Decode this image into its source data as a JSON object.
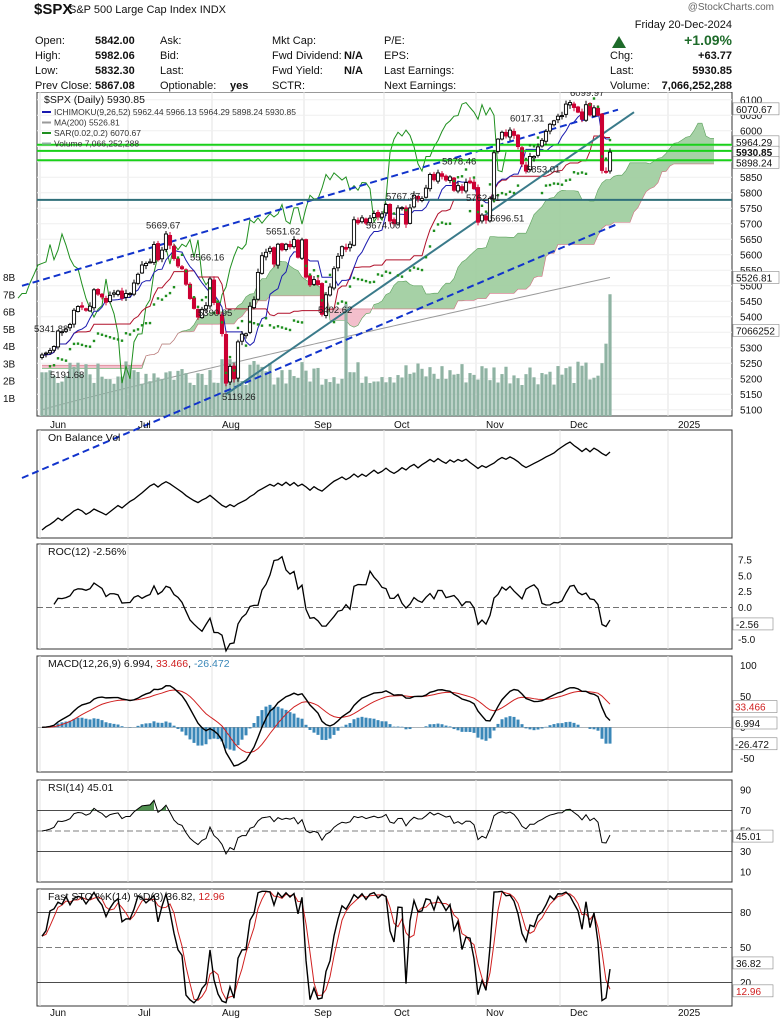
{
  "header": {
    "symbol": "$SPX",
    "name": "S&P 500 Large Cap Index",
    "exchange": "INDX",
    "watermark": "@StockCharts.com",
    "date_line": "Friday  20-Dec-2024",
    "change_pct": "+1.09%",
    "col1": [
      {
        "label": "Open:",
        "value": "5842.00"
      },
      {
        "label": "High:",
        "value": "5982.06"
      },
      {
        "label": "Low:",
        "value": "5832.30"
      },
      {
        "label": "Prev Close:",
        "value": "5867.08"
      }
    ],
    "col2": [
      {
        "label": "Ask:",
        "value": ""
      },
      {
        "label": "Bid:",
        "value": ""
      },
      {
        "label": "Last:",
        "value": ""
      },
      {
        "label": "Optionable:",
        "value": "yes"
      }
    ],
    "col3": [
      {
        "label": "Mkt Cap:",
        "value": ""
      },
      {
        "label": "Fwd Dividend:",
        "value": "N/A"
      },
      {
        "label": "Fwd Yield:",
        "value": "N/A"
      },
      {
        "label": "SCTR:",
        "value": ""
      }
    ],
    "col4": [
      {
        "label": "P/E:",
        "value": ""
      },
      {
        "label": "EPS:",
        "value": ""
      },
      {
        "label": "Last Earnings:",
        "value": ""
      },
      {
        "label": "Next Earnings:",
        "value": ""
      }
    ],
    "col5": [
      {
        "label": "Chg:",
        "value": "+63.77"
      },
      {
        "label": "Last:",
        "value": "5930.85"
      },
      {
        "label": "Volume:",
        "value": "7,066,252,288"
      }
    ]
  },
  "colors": {
    "up": "#000000",
    "down": "#cc0033",
    "tenkan": "#1a1ab0",
    "kijun": "#b0102a",
    "chikou": "#1f8f1f",
    "cloud_bull": "#9ccc9c",
    "cloud_bear": "#f2b8c6",
    "ma200": "#9a9a9a",
    "volume": "#8fb3a3",
    "trend_blue": "#1133cc",
    "trend_teal": "#3a7a8a",
    "hline_green": "#1ad11a",
    "hline_teal": "#2f6f7a",
    "macd_hist": "#3a87b8",
    "rsi_green": "#4f8f4f"
  },
  "chart_data": [
    {
      "type": "candlestick",
      "panel": "price",
      "title": "$SPX (Daily) 5930.85",
      "legend": [
        {
          "text": "ICHIMOKU(9,26,52) 5962.44 5966.13 5964.29 5898.24 5930.85",
          "color": "#1a1ab0"
        },
        {
          "text": "MA(200) 5526.81",
          "color": "#9a9a9a"
        },
        {
          "text": "SAR(0.02,0.2) 6070.67",
          "color": "#1f8f1f"
        },
        {
          "text": "Volume 7,066,252,288",
          "color": "#8fb3a3"
        }
      ],
      "y_ticks": [
        "6100",
        "6050",
        "6000",
        "5950",
        "5900",
        "5850",
        "5800",
        "5750",
        "5700",
        "5650",
        "5600",
        "5550",
        "5500",
        "5450",
        "5400",
        "5350",
        "5300",
        "5250",
        "5200",
        "5150",
        "5100"
      ],
      "y_tick_values": [
        6100,
        6050,
        6000,
        5950,
        5900,
        5850,
        5800,
        5750,
        5700,
        5650,
        5600,
        5550,
        5500,
        5450,
        5400,
        5350,
        5300,
        5250,
        5200,
        5150,
        5100
      ],
      "ylim": [
        5080,
        6125
      ],
      "volume_ticks": [
        "8B",
        "7B",
        "6B",
        "5B",
        "4B",
        "3B",
        "2B",
        "1B"
      ],
      "volume_tick_values": [
        8,
        7,
        6,
        5,
        4,
        3,
        2,
        1
      ],
      "x_month_labels": [
        "Jun",
        "Jul",
        "Aug",
        "Sep",
        "Oct",
        "Nov",
        "Dec",
        "2025"
      ],
      "x_month_index": [
        0,
        22,
        43,
        66,
        86,
        109,
        130,
        157
      ],
      "annotations": [
        {
          "text": "5341.88",
          "i": 2,
          "y": 5338
        },
        {
          "text": "5191.68",
          "i": 6,
          "y": 5190
        },
        {
          "text": "5669.67",
          "i": 30,
          "y": 5672
        },
        {
          "text": "5566.16",
          "i": 41,
          "y": 5568
        },
        {
          "text": "5390.95",
          "i": 43,
          "y": 5390
        },
        {
          "text": "5119.26",
          "i": 49,
          "y": 5118
        },
        {
          "text": "5651.62",
          "i": 60,
          "y": 5652
        },
        {
          "text": "5402.62",
          "i": 73,
          "y": 5400
        },
        {
          "text": "5674.00",
          "i": 85,
          "y": 5672
        },
        {
          "text": "5767.37",
          "i": 90,
          "y": 5765
        },
        {
          "text": "5878.46",
          "i": 104,
          "y": 5878
        },
        {
          "text": "5762.41",
          "i": 110,
          "y": 5760
        },
        {
          "text": "5696.51",
          "i": 116,
          "y": 5695
        },
        {
          "text": "6017.31",
          "i": 121,
          "y": 6017
        },
        {
          "text": "5853.01",
          "i": 125,
          "y": 5853
        },
        {
          "text": "6099.97",
          "i": 136,
          "y": 6100
        }
      ],
      "right_labels": [
        {
          "text": "6070.67",
          "y": 6070.67,
          "bg": "#ffffff"
        },
        {
          "text": "5964.29",
          "y": 5964.29,
          "bg": "#ffffff"
        },
        {
          "text": "5930.85",
          "y": 5930.85,
          "bg": "#ffffff"
        },
        {
          "text": "5898.24",
          "y": 5898.24,
          "bg": "#ffffff"
        },
        {
          "text": "5526.81",
          "y": 5526.81,
          "bg": "#ffffff"
        },
        {
          "text": "7066252",
          "y": 5356,
          "bg": "#ffffff"
        }
      ],
      "close": [
        5277,
        5283,
        5291,
        5304,
        5354,
        5352,
        5360,
        5375,
        5421,
        5433,
        5431,
        5421,
        5434,
        5487,
        5473,
        5464,
        5447,
        5469,
        5477,
        5483,
        5460,
        5475,
        5475,
        5509,
        5537,
        5567,
        5572,
        5577,
        5633,
        5584,
        5615,
        5667,
        5631,
        5588,
        5564,
        5555,
        5505,
        5459,
        5427,
        5399,
        5424,
        5436,
        5522,
        5446,
        5410,
        5346,
        5186,
        5240,
        5200,
        5319,
        5344,
        5345,
        5434,
        5455,
        5543,
        5597,
        5608,
        5621,
        5570,
        5634,
        5616,
        5634,
        5626,
        5649,
        5592,
        5648,
        5528,
        5503,
        5520,
        5504,
        5408,
        5471,
        5496,
        5555,
        5595,
        5626,
        5618,
        5634,
        5713,
        5703,
        5719,
        5702,
        5718,
        5733,
        5722,
        5732,
        5762,
        5709,
        5700,
        5751,
        5752,
        5699,
        5751,
        5792,
        5780,
        5781,
        5815,
        5859,
        5842,
        5864,
        5853,
        5841,
        5851,
        5808,
        5823,
        5808,
        5833,
        5832,
        5813,
        5705,
        5728,
        5712,
        5782,
        5929,
        5973,
        5995,
        5983,
        6002,
        5985,
        5949,
        5893,
        5870,
        5917,
        5917,
        5948,
        5969,
        5998,
        6021,
        6032,
        6047,
        6049,
        6086,
        6091,
        6075,
        6060,
        6037,
        6084,
        6051,
        6074,
        6050,
        5872,
        5868,
        5931
      ],
      "panel_y_range": [
        5080,
        6125
      ],
      "kijun_values": "computed: midpoint of 26-period high/low of close",
      "ma200_range": [
        5100,
        5526.81
      ],
      "trendlines": [
        {
          "name": "upper-channel",
          "from": [
            -5,
            5500
          ],
          "to": [
            144,
            6068
          ]
        },
        {
          "name": "lower-channel",
          "from": [
            -5,
            4880
          ],
          "to": [
            144,
            5700
          ]
        },
        {
          "name": "teal-support",
          "from": [
            46,
            5150
          ],
          "to": [
            148,
            6060
          ]
        }
      ],
      "horizontal_lines": [
        {
          "y": 5955,
          "color": "green"
        },
        {
          "y": 5935,
          "color": "green"
        },
        {
          "y": 5905,
          "color": "green"
        },
        {
          "y": 5777,
          "color": "teal"
        }
      ]
    },
    {
      "type": "line",
      "panel": "obv",
      "title": "On Balance Vol",
      "ylim": [
        0,
        1
      ]
    },
    {
      "type": "line",
      "panel": "roc",
      "title": "ROC(12) -2.56%",
      "y_ticks": [
        "7.5",
        "5.0",
        "2.5",
        "0.0",
        "-2.5",
        "-5.0"
      ],
      "y_tick_values": [
        7.5,
        5,
        2.5,
        0,
        -2.5,
        -5
      ],
      "ylim": [
        -6.5,
        10
      ],
      "last": "-2.56"
    },
    {
      "type": "line",
      "panel": "macd",
      "title": "MACD(12,26,9) 6.994, 33.466, -26.472",
      "title_parts": [
        "MACD(12,26,9) 6.994, ",
        "33.466",
        ", ",
        "-26.472"
      ],
      "y_ticks": [
        "100",
        "50",
        "0",
        "-50"
      ],
      "y_tick_values": [
        100,
        50,
        0,
        -50
      ],
      "ylim": [
        -72,
        115
      ],
      "right_labels": [
        "33.466",
        "6.994",
        "-26.472"
      ]
    },
    {
      "type": "line",
      "panel": "rsi",
      "title": "RSI(14) 45.01",
      "y_ticks": [
        "90",
        "70",
        "50",
        "30",
        "10"
      ],
      "y_tick_values": [
        90,
        70,
        50,
        30,
        10
      ],
      "ylim": [
        0,
        100
      ],
      "last": "45.01"
    },
    {
      "type": "line",
      "panel": "stoch",
      "title": "Fast STO %K(14) %D(3) 36.82, 12.96",
      "title_parts": [
        "Fast STO %K(14) %D(3) 36.82, ",
        "12.96"
      ],
      "y_ticks": [
        "80",
        "50",
        "20"
      ],
      "y_tick_values": [
        80,
        50,
        20
      ],
      "ylim": [
        0,
        100
      ],
      "right_labels": [
        "36.82",
        "12.96"
      ]
    }
  ]
}
